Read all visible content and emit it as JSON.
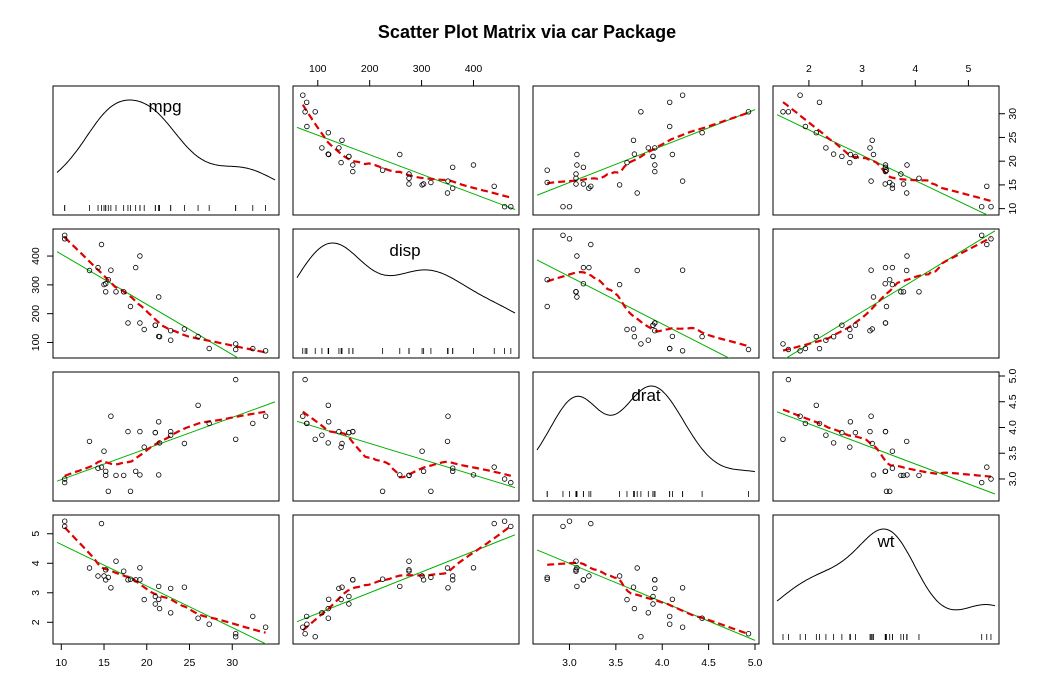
{
  "title": "Scatter Plot Matrix via car Package",
  "chart_data": {
    "type": "scatter",
    "title": "Scatter Plot Matrix via car Package",
    "variables": [
      "mpg",
      "disp",
      "drat",
      "wt"
    ],
    "axes": {
      "mpg": {
        "lim": [
          9.5,
          35
        ],
        "ticks": [
          10,
          15,
          20,
          25,
          30
        ],
        "tick_labels": [
          "10",
          "15",
          "20",
          "25",
          "30"
        ]
      },
      "disp": {
        "lim": [
          60,
          480
        ],
        "ticks": [
          100,
          200,
          300,
          400
        ],
        "tick_labels": [
          "100",
          "200",
          "300",
          "400"
        ]
      },
      "drat": {
        "lim": [
          2.65,
          5.0
        ],
        "ticks": [
          3.0,
          3.5,
          4.0,
          4.5,
          5.0
        ],
        "tick_labels": [
          "3.0",
          "3.5",
          "4.0",
          "4.5",
          "5.0"
        ]
      },
      "wt": {
        "lim": [
          1.4,
          5.5
        ],
        "ticks": [
          2,
          3,
          4,
          5
        ],
        "tick_labels": [
          "2",
          "3",
          "4",
          "5"
        ]
      }
    },
    "tick_placement": {
      "top": [
        "disp",
        "wt"
      ],
      "bottom": [
        "mpg",
        "drat"
      ],
      "left": [
        "disp",
        "wt"
      ],
      "right": [
        "mpg",
        "drat"
      ]
    },
    "diagonal": "density",
    "smoother": "loess (red dashed)",
    "regression": "least squares (green)",
    "colors": {
      "points": "#000000",
      "regression": "#00b000",
      "smoother": "#e00000",
      "density": "#000000",
      "frame": "#000000"
    },
    "data": {
      "mpg": [
        21.0,
        21.0,
        22.8,
        21.4,
        18.7,
        18.1,
        14.3,
        24.4,
        22.8,
        19.2,
        17.8,
        16.4,
        17.3,
        15.2,
        10.4,
        10.4,
        14.7,
        32.4,
        30.4,
        33.9,
        21.5,
        15.5,
        15.2,
        13.3,
        19.2,
        27.3,
        26.0,
        30.4,
        15.8,
        19.7,
        15.0,
        21.4
      ],
      "disp": [
        160,
        160,
        108,
        258,
        360,
        225,
        360,
        146.7,
        140.8,
        167.6,
        167.6,
        275.8,
        275.8,
        275.8,
        472,
        460,
        440,
        78.7,
        75.7,
        71.1,
        120.1,
        318,
        304,
        350,
        400,
        79,
        120.3,
        95.1,
        351,
        145,
        301,
        121
      ],
      "drat": [
        3.9,
        3.9,
        3.85,
        3.08,
        3.15,
        2.76,
        3.21,
        3.69,
        3.92,
        3.92,
        3.92,
        3.07,
        3.07,
        3.07,
        2.93,
        3.0,
        3.23,
        4.08,
        4.93,
        4.22,
        3.7,
        2.76,
        3.15,
        3.73,
        3.08,
        4.08,
        4.43,
        3.77,
        4.22,
        3.62,
        3.54,
        4.11
      ],
      "wt": [
        2.62,
        2.875,
        2.32,
        3.215,
        3.44,
        3.46,
        3.57,
        3.19,
        3.15,
        3.44,
        3.44,
        4.07,
        3.73,
        3.78,
        5.25,
        5.424,
        5.345,
        2.2,
        1.615,
        1.835,
        2.465,
        3.52,
        3.435,
        3.84,
        3.845,
        1.935,
        2.14,
        1.513,
        3.17,
        2.77,
        3.57,
        2.78
      ]
    }
  }
}
